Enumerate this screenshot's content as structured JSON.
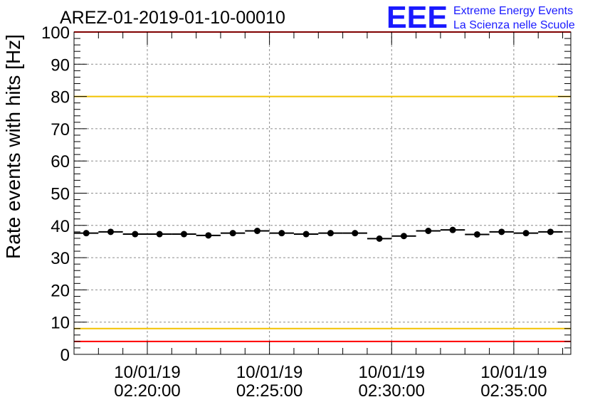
{
  "header": {
    "run_title": "AREZ-01-2019-01-10-00010",
    "logo_text": "EEE",
    "brand_line1": "Extreme Energy Events",
    "brand_line2": "La Scienza nelle Scuole"
  },
  "colors": {
    "brand_blue": "#1a1aff",
    "red_limit": "#ff0000",
    "yellow_limit": "#f2c200",
    "data_marker": "#000000"
  },
  "chart_data": {
    "type": "scatter",
    "title": "AREZ-01-2019-01-10-00010",
    "xlabel": "",
    "ylabel": "Rate events with hits [Hz]",
    "ylim": [
      0,
      100
    ],
    "xlim": [
      "02:17:00",
      "02:37:20"
    ],
    "y_ticks": [
      "0",
      "10",
      "20",
      "30",
      "40",
      "50",
      "60",
      "70",
      "80",
      "90",
      "100"
    ],
    "x_tick_labels": [
      {
        "date": "10/01/19",
        "time": "02:20:00"
      },
      {
        "date": "10/01/19",
        "time": "02:25:00"
      },
      {
        "date": "10/01/19",
        "time": "02:30:00"
      },
      {
        "date": "10/01/19",
        "time": "02:35:00"
      }
    ],
    "grid": true,
    "bin_width_seconds": 60,
    "x": [
      "02:17:30",
      "02:18:30",
      "02:19:30",
      "02:20:30",
      "02:21:30",
      "02:22:30",
      "02:23:30",
      "02:24:30",
      "02:25:30",
      "02:26:30",
      "02:27:30",
      "02:28:30",
      "02:29:30",
      "02:30:30",
      "02:31:30",
      "02:32:30",
      "02:33:30",
      "02:34:30",
      "02:35:30",
      "02:36:30"
    ],
    "y": [
      37.6,
      38.0,
      37.3,
      37.3,
      37.3,
      36.9,
      37.6,
      38.3,
      37.6,
      37.3,
      37.6,
      37.6,
      35.9,
      36.7,
      38.3,
      38.6,
      37.2,
      38.0,
      37.6,
      38.0
    ],
    "reference_lines": [
      {
        "y": 80,
        "color": "yellow"
      },
      {
        "y": 8,
        "color": "yellow"
      },
      {
        "y": 100,
        "color": "red"
      },
      {
        "y": 4,
        "color": "red"
      }
    ]
  }
}
